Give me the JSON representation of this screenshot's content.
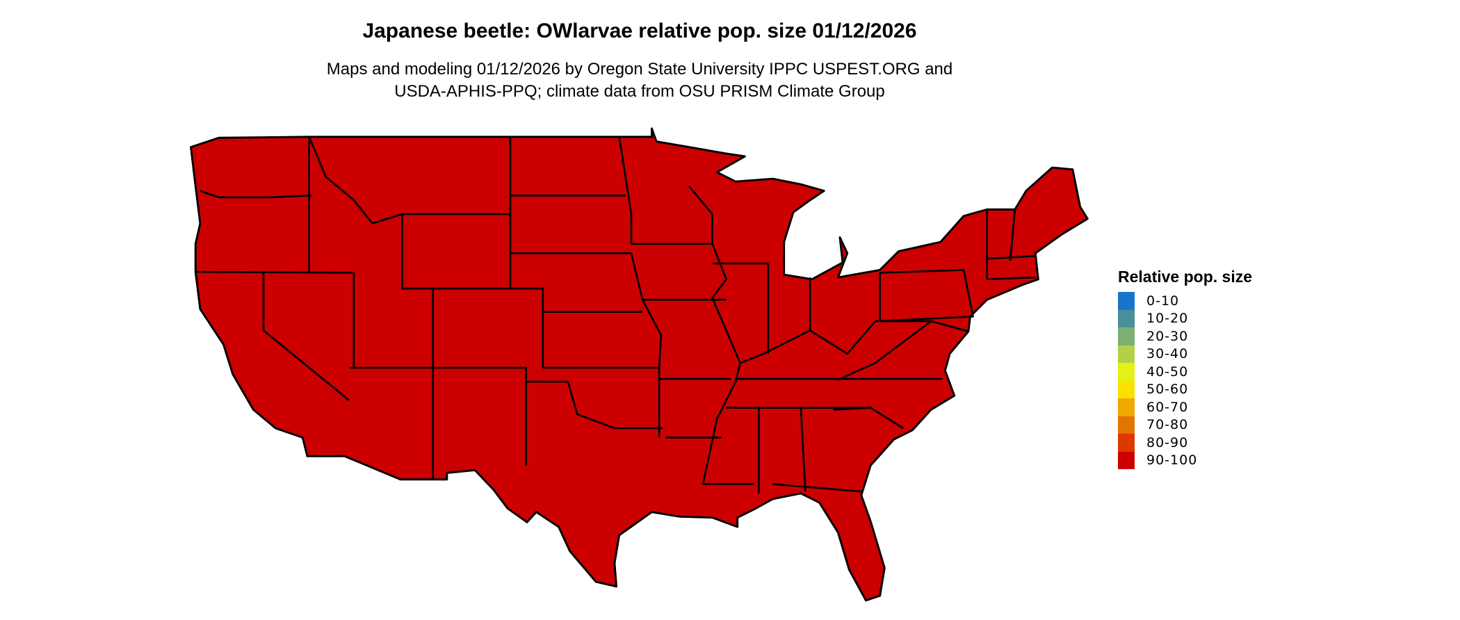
{
  "title": "Japanese beetle: OWlarvae relative pop. size 01/12/2026",
  "subtitle_lines": [
    "Maps and modeling 01/12/2026 by Oregon State University IPPC USPEST.ORG and",
    "USDA-APHIS-PPQ; climate data from OSU PRISM Climate Group"
  ],
  "map": {
    "region": "Conterminous United States",
    "fill_color": "#CC0000",
    "border_color": "#000000",
    "predominant_class": "90-100"
  },
  "legend": {
    "title": "Relative pop. size",
    "items": [
      {
        "label": "0-10",
        "color": "#1874CD"
      },
      {
        "label": "10-20",
        "color": "#4A8E9B"
      },
      {
        "label": "20-30",
        "color": "#7DAF72"
      },
      {
        "label": "30-40",
        "color": "#B2D145"
      },
      {
        "label": "40-50",
        "color": "#E5F016"
      },
      {
        "label": "50-60",
        "color": "#FAE100"
      },
      {
        "label": "60-70",
        "color": "#F0A800"
      },
      {
        "label": "70-80",
        "color": "#E47400"
      },
      {
        "label": "80-90",
        "color": "#DC3800"
      },
      {
        "label": "90-100",
        "color": "#CC0000"
      }
    ]
  }
}
